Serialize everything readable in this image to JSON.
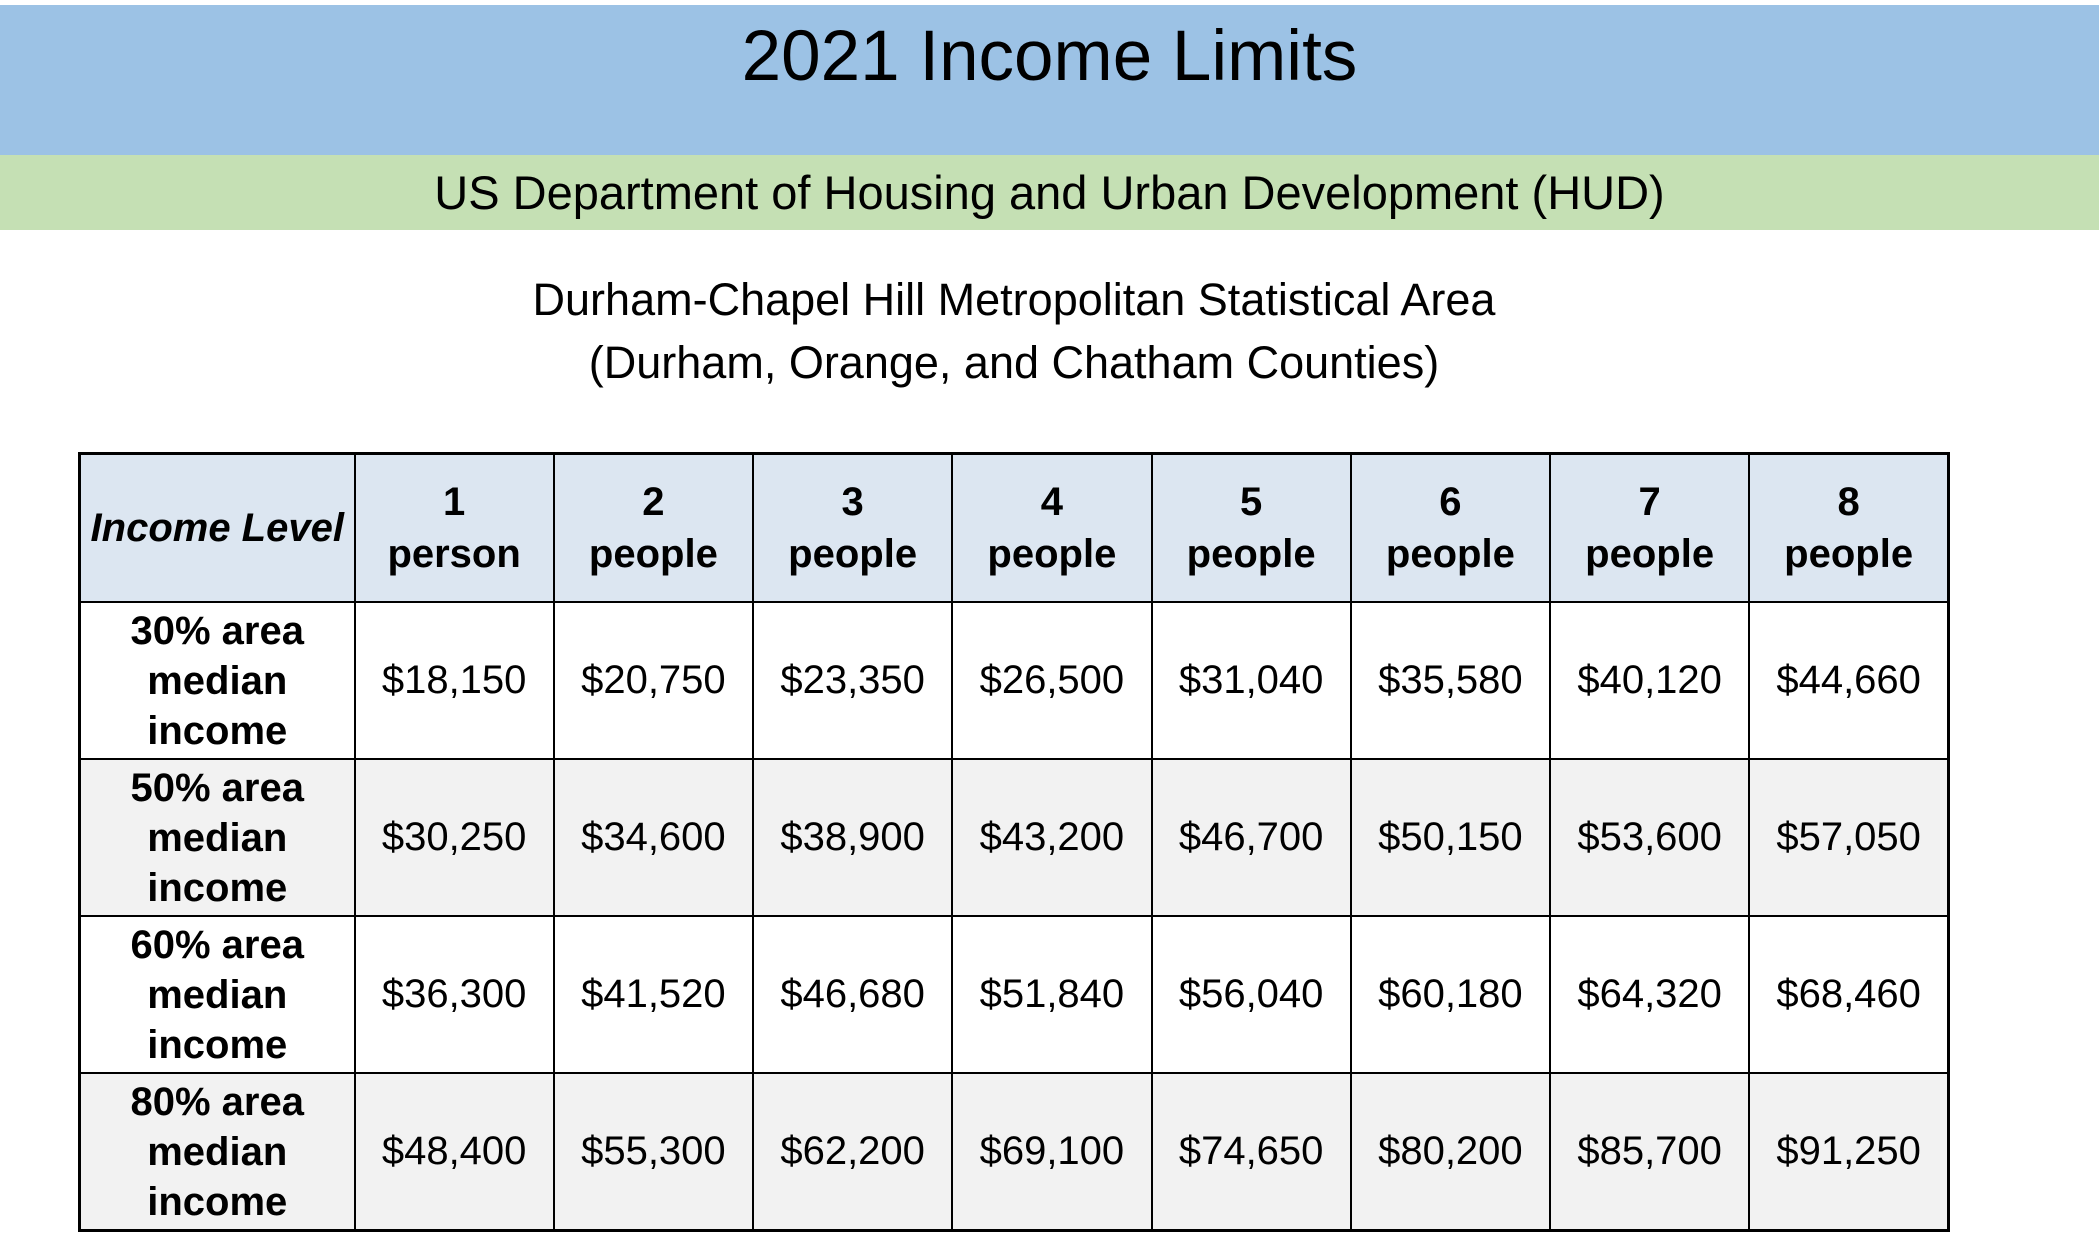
{
  "header": {
    "title": "2021 Income Limits",
    "department": "US Department of Housing and Urban Development (HUD)"
  },
  "area": {
    "line1": "Durham-Chapel Hill Metropolitan Statistical Area",
    "line2": "(Durham, Orange, and Chatham Counties)"
  },
  "colors": {
    "title_band_bg": "#9CC2E5",
    "department_band_bg": "#C5E0B4",
    "table_header_bg": "#DCE6F1",
    "alt_row_bg": "#F2F2F2",
    "table_border": "#000000"
  },
  "table": {
    "corner_label": "Income Level",
    "columns": [
      {
        "count": "1",
        "unit": "person"
      },
      {
        "count": "2",
        "unit": "people"
      },
      {
        "count": "3",
        "unit": "people"
      },
      {
        "count": "4",
        "unit": "people"
      },
      {
        "count": "5",
        "unit": "people"
      },
      {
        "count": "6",
        "unit": "people"
      },
      {
        "count": "7",
        "unit": "people"
      },
      {
        "count": "8",
        "unit": "people"
      }
    ],
    "rows": [
      {
        "label": "30% area median income",
        "label_lines": [
          "30% area",
          "median",
          "income"
        ],
        "values": [
          "$18,150",
          "$20,750",
          "$23,350",
          "$26,500",
          "$31,040",
          "$35,580",
          "$40,120",
          "$44,660"
        ]
      },
      {
        "label": "50% area median income",
        "label_lines": [
          "50% area",
          "median",
          "income"
        ],
        "values": [
          "$30,250",
          "$34,600",
          "$38,900",
          "$43,200",
          "$46,700",
          "$50,150",
          "$53,600",
          "$57,050"
        ]
      },
      {
        "label": "60% area median income",
        "label_lines": [
          "60% area",
          "median",
          "income"
        ],
        "values": [
          "$36,300",
          "$41,520",
          "$46,680",
          "$51,840",
          "$56,040",
          "$60,180",
          "$64,320",
          "$68,460"
        ]
      },
      {
        "label": "80% area median income",
        "label_lines": [
          "80% area",
          "median",
          "income"
        ],
        "values": [
          "$48,400",
          "$55,300",
          "$62,200",
          "$69,100",
          "$74,650",
          "$80,200",
          "$85,700",
          "$91,250"
        ]
      }
    ]
  }
}
